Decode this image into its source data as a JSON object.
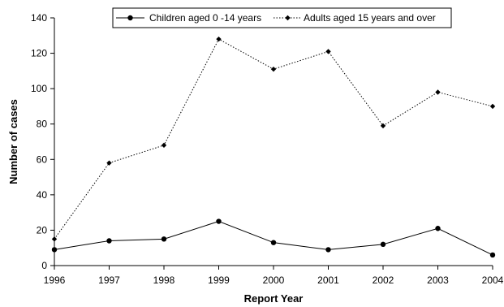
{
  "chart_data": {
    "type": "line",
    "xlabel": "Report Year",
    "ylabel": "Number of cases",
    "x": [
      1996,
      1997,
      1998,
      1999,
      2000,
      2001,
      2002,
      2003,
      2004
    ],
    "xlim": [
      1996,
      2004
    ],
    "ylim": [
      0,
      140
    ],
    "yticks": [
      0,
      20,
      40,
      60,
      80,
      100,
      120,
      140
    ],
    "grid": false,
    "legend_position": "top-right",
    "series": [
      {
        "name": "Children aged 0 -14 years",
        "values": [
          9,
          14,
          15,
          25,
          13,
          9,
          12,
          21,
          6
        ],
        "line_style": "solid",
        "marker": "circle",
        "color": "#000000"
      },
      {
        "name": "Adults aged 15 years and over",
        "values": [
          15,
          58,
          68,
          128,
          111,
          121,
          79,
          98,
          90
        ],
        "line_style": "dotted",
        "marker": "diamond",
        "color": "#000000"
      }
    ]
  }
}
